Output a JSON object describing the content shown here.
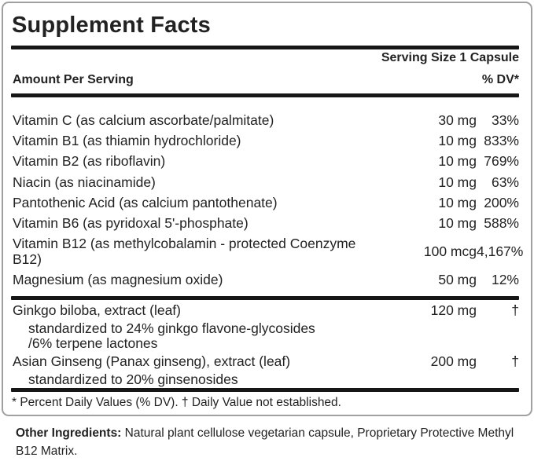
{
  "panel": {
    "title": "Supplement Facts",
    "serving_size": "Serving Size 1 Capsule",
    "col_amount": "Amount Per Serving",
    "col_dv": "% DV*",
    "nutrients": [
      {
        "name": "Vitamin C (as calcium ascorbate/palmitate)",
        "amount": "30 mg",
        "dv": "33%"
      },
      {
        "name": "Vitamin B1 (as thiamin hydrochloride)",
        "amount": "10 mg",
        "dv": "833%"
      },
      {
        "name": "Vitamin B2 (as riboflavin)",
        "amount": "10 mg",
        "dv": "769%"
      },
      {
        "name": "Niacin (as niacinamide)",
        "amount": "10 mg",
        "dv": "63%"
      },
      {
        "name": "Pantothenic Acid (as calcium pantothenate)",
        "amount": "10 mg",
        "dv": "200%"
      },
      {
        "name": "Vitamin B6 (as pyridoxal 5'-phosphate)",
        "amount": "10 mg",
        "dv": "588%"
      },
      {
        "name": "Vitamin B12 (as methylcobalamin - protected Coenzyme\nB12)",
        "amount": "100 mcg",
        "dv": "4,167%"
      },
      {
        "name": "Magnesium (as magnesium oxide)",
        "amount": "50 mg",
        "dv": "12%"
      }
    ],
    "herbs": [
      {
        "name": "Ginkgo biloba, extract (leaf)",
        "amount": "120 mg",
        "dv": "†"
      },
      {
        "name": "standardized to 24% ginkgo flavone-glycosides\n/6% terpene lactones",
        "indent": true
      },
      {
        "name": "Asian Ginseng (Panax ginseng), extract (leaf)",
        "amount": "200 mg",
        "dv": "†"
      },
      {
        "name": "standardized to 20% ginsenosides",
        "indent": true
      }
    ],
    "footnote": "* Percent Daily Values (% DV). † Daily Value not established."
  },
  "other_ingredients": {
    "label": "Other Ingredients:",
    "text": " Natural plant cellulose vegetarian capsule, Proprietary Protective Methyl B12 Matrix."
  },
  "colors": {
    "text": "#222222",
    "rule": "#161616",
    "border": "#a0a0a0",
    "background": "#ffffff"
  }
}
